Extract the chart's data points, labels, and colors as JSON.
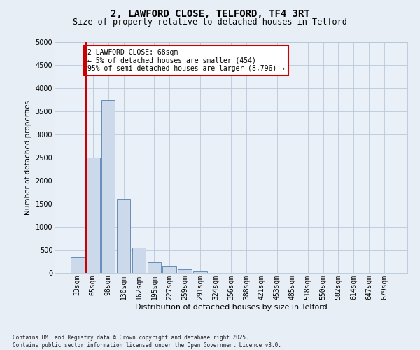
{
  "title_line1": "2, LAWFORD CLOSE, TELFORD, TF4 3RT",
  "title_line2": "Size of property relative to detached houses in Telford",
  "xlabel": "Distribution of detached houses by size in Telford",
  "ylabel": "Number of detached properties",
  "categories": [
    "33sqm",
    "65sqm",
    "98sqm",
    "130sqm",
    "162sqm",
    "195sqm",
    "227sqm",
    "259sqm",
    "291sqm",
    "324sqm",
    "356sqm",
    "388sqm",
    "421sqm",
    "453sqm",
    "485sqm",
    "518sqm",
    "550sqm",
    "582sqm",
    "614sqm",
    "647sqm",
    "679sqm"
  ],
  "bar_values": [
    350,
    2500,
    3750,
    1600,
    550,
    230,
    150,
    80,
    40,
    0,
    0,
    0,
    0,
    0,
    0,
    0,
    0,
    0,
    0,
    0,
    0
  ],
  "bar_color": "#ccd9ea",
  "bar_edge_color": "#5580b0",
  "vline_x_idx": 1,
  "vline_color": "#cc0000",
  "ylim": [
    0,
    5000
  ],
  "yticks": [
    0,
    500,
    1000,
    1500,
    2000,
    2500,
    3000,
    3500,
    4000,
    4500,
    5000
  ],
  "annotation_text": "2 LAWFORD CLOSE: 68sqm\n← 5% of detached houses are smaller (454)\n95% of semi-detached houses are larger (8,796) →",
  "annotation_box_color": "#cc0000",
  "footnote": "Contains HM Land Registry data © Crown copyright and database right 2025.\nContains public sector information licensed under the Open Government Licence v3.0.",
  "bg_color": "#e8eef5",
  "plot_bg_color": "#eaf0f7",
  "grid_color": "#b8c8d8",
  "title1_fontsize": 10,
  "title2_fontsize": 8.5,
  "xlabel_fontsize": 8,
  "ylabel_fontsize": 7.5,
  "tick_fontsize": 7,
  "annot_fontsize": 7,
  "footnote_fontsize": 5.5
}
